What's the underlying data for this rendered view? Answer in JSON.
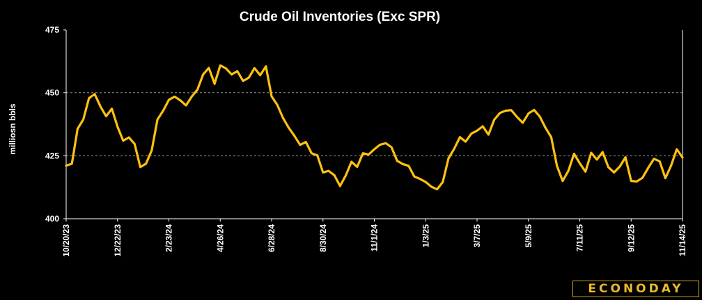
{
  "chart_data": {
    "type": "line",
    "title": "Crude Oil Inventories (Exc SPR)",
    "xlabel": "",
    "ylabel": "milliosn bbls",
    "ylim": [
      400,
      475
    ],
    "yticks": [
      "400",
      "425",
      "450",
      "475"
    ],
    "grid": "horizontal-dashed",
    "line_color": "#FFC20E",
    "tick_labels": [
      "10/20/23",
      "12/22/23",
      "2/23/24",
      "4/26/24",
      "6/28/24",
      "8/30/24",
      "11/1/24",
      "1/3/25",
      "3/7/25",
      "5/9/25",
      "7/11/25",
      "9/12/25",
      "11/14/25"
    ],
    "series": [
      {
        "values": [
          421.1,
          421.8,
          435.7,
          439.4,
          447.9,
          449.5,
          444.6,
          440.7,
          443.7,
          436.5,
          431.0,
          432.3,
          429.7,
          420.5,
          421.9,
          427.2,
          439.4,
          442.9,
          447.2,
          448.5,
          447.0,
          445.0,
          448.5,
          451.3,
          457.3,
          459.9,
          453.6,
          460.9,
          459.7,
          457.3,
          458.6,
          454.7,
          456.0,
          459.8,
          457.0,
          460.5,
          448.6,
          445.2,
          440.0,
          436.1,
          432.9,
          429.3,
          430.5,
          426.0,
          425.2,
          418.4,
          419.0,
          417.3,
          413.0,
          417.2,
          422.6,
          420.6,
          426.0,
          425.5,
          427.6,
          429.4,
          430.0,
          428.4,
          423.0,
          421.7,
          421.0,
          416.8,
          415.8,
          414.6,
          412.7,
          411.7,
          414.6,
          424.0,
          427.8,
          432.4,
          430.6,
          433.8,
          435.0,
          436.7,
          433.4,
          439.3,
          442.0,
          442.9,
          443.1,
          440.4,
          438.1,
          441.8,
          443.2,
          440.6,
          436.1,
          432.4,
          421.0,
          415.0,
          419.0,
          425.8,
          422.0,
          418.7,
          426.2,
          423.5,
          426.5,
          420.5,
          418.4,
          420.7,
          424.4,
          415.0,
          414.8,
          416.3,
          420.2,
          423.8,
          422.8,
          416.1,
          421.1,
          427.6,
          424.3
        ]
      }
    ]
  },
  "brand": {
    "name": "ECONODAY",
    "mark": "®",
    "color": "#E9B92A"
  }
}
